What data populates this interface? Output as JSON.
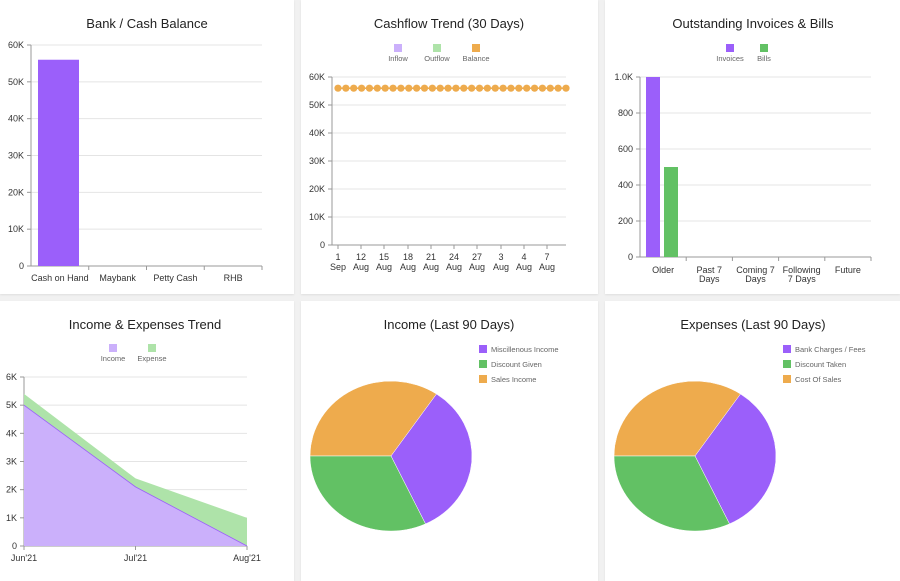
{
  "colors": {
    "purple": "#9b5ffa",
    "green": "#62c164",
    "orange": "#eeab4d",
    "light_purple": "#cbb0fb",
    "light_green": "#aee3a9",
    "grid": "#e4e4e4",
    "axis": "#999999"
  },
  "charts": [
    {
      "title": "Bank / Cash Balance",
      "chart_data": {
        "type": "bar",
        "categories": [
          "Cash on Hand",
          "Maybank",
          "Petty Cash",
          "RHB"
        ],
        "values": [
          56000,
          0,
          0,
          0
        ],
        "ylim": [
          0,
          60000
        ],
        "yticks": [
          "0",
          "10K",
          "20K",
          "30K",
          "40K",
          "50K",
          "60K"
        ],
        "grid": true
      }
    },
    {
      "title": "Cashflow Trend (30 Days)",
      "chart_data": {
        "type": "line",
        "legend": [
          "Inflow",
          "Outflow",
          "Balance"
        ],
        "x_labels": [
          [
            "1",
            "Sep"
          ],
          [
            "12",
            "Aug"
          ],
          [
            "15",
            "Aug"
          ],
          [
            "18",
            "Aug"
          ],
          [
            "21",
            "Aug"
          ],
          [
            "24",
            "Aug"
          ],
          [
            "27",
            "Aug"
          ],
          [
            "3",
            "Aug"
          ],
          [
            "4",
            "Aug"
          ],
          [
            "7",
            "Aug"
          ]
        ],
        "series": [
          {
            "name": "Balance",
            "values": [
              56000,
              56000,
              56000,
              56000,
              56000,
              56000,
              56000,
              56000,
              56000,
              56000,
              56000,
              56000,
              56000,
              56000,
              56000,
              56000,
              56000,
              56000,
              56000,
              56000,
              56000,
              56000,
              56000,
              56000,
              56000,
              56000,
              56000,
              56000,
              56000,
              56000
            ]
          }
        ],
        "ylim": [
          0,
          60000
        ],
        "yticks": [
          "0",
          "10K",
          "20K",
          "30K",
          "40K",
          "50K",
          "60K"
        ],
        "grid": true,
        "legend_position": "top"
      }
    },
    {
      "title": "Outstanding Invoices & Bills",
      "chart_data": {
        "type": "bar",
        "legend": [
          "Invoices",
          "Bills"
        ],
        "categories": [
          [
            "Older"
          ],
          [
            "Past 7",
            "Days"
          ],
          [
            "Coming 7",
            "Days"
          ],
          [
            "Following",
            "7 Days"
          ],
          [
            "Future"
          ]
        ],
        "series": [
          {
            "name": "Invoices",
            "values": [
              1000,
              0,
              0,
              0,
              0
            ]
          },
          {
            "name": "Bills",
            "values": [
              500,
              0,
              0,
              0,
              0
            ]
          }
        ],
        "ylim": [
          0,
          1000
        ],
        "yticks": [
          "0",
          "200",
          "400",
          "600",
          "800",
          "1.0K"
        ],
        "grid": true,
        "legend_position": "top"
      }
    },
    {
      "title": "Income & Expenses Trend",
      "chart_data": {
        "type": "area",
        "legend": [
          "Income",
          "Expense"
        ],
        "x": [
          "Jun'21",
          "Jul'21",
          "Aug'21"
        ],
        "series": [
          {
            "name": "Income",
            "values": [
              5000,
              2100,
              0
            ]
          },
          {
            "name": "Expense",
            "values": [
              400,
              300,
              1000
            ]
          }
        ],
        "stacked": true,
        "ylim": [
          0,
          6000
        ],
        "yticks": [
          "0",
          "1K",
          "2K",
          "3K",
          "4K",
          "5K",
          "6K"
        ],
        "grid": true,
        "legend_position": "top"
      }
    },
    {
      "title": "Income (Last 90 Days)",
      "chart_data": {
        "type": "pie",
        "legend": [
          "Miscillenous Income",
          "Discount Given",
          "Sales Income"
        ],
        "slices": [
          {
            "name": "Sales Income",
            "value": 34.5
          },
          {
            "name": "Miscillenous Income",
            "value": 33.5
          },
          {
            "name": "Discount Given",
            "value": 32
          }
        ],
        "legend_position": "right"
      }
    },
    {
      "title": "Expenses (Last 90 Days)",
      "chart_data": {
        "type": "pie",
        "legend": [
          "Bank Charges / Fees",
          "Discount Taken",
          "Cost Of Sales"
        ],
        "slices": [
          {
            "name": "Cost Of Sales",
            "value": 34.5
          },
          {
            "name": "Bank Charges / Fees",
            "value": 33.5
          },
          {
            "name": "Discount Taken",
            "value": 32
          }
        ],
        "legend_position": "right"
      }
    }
  ]
}
